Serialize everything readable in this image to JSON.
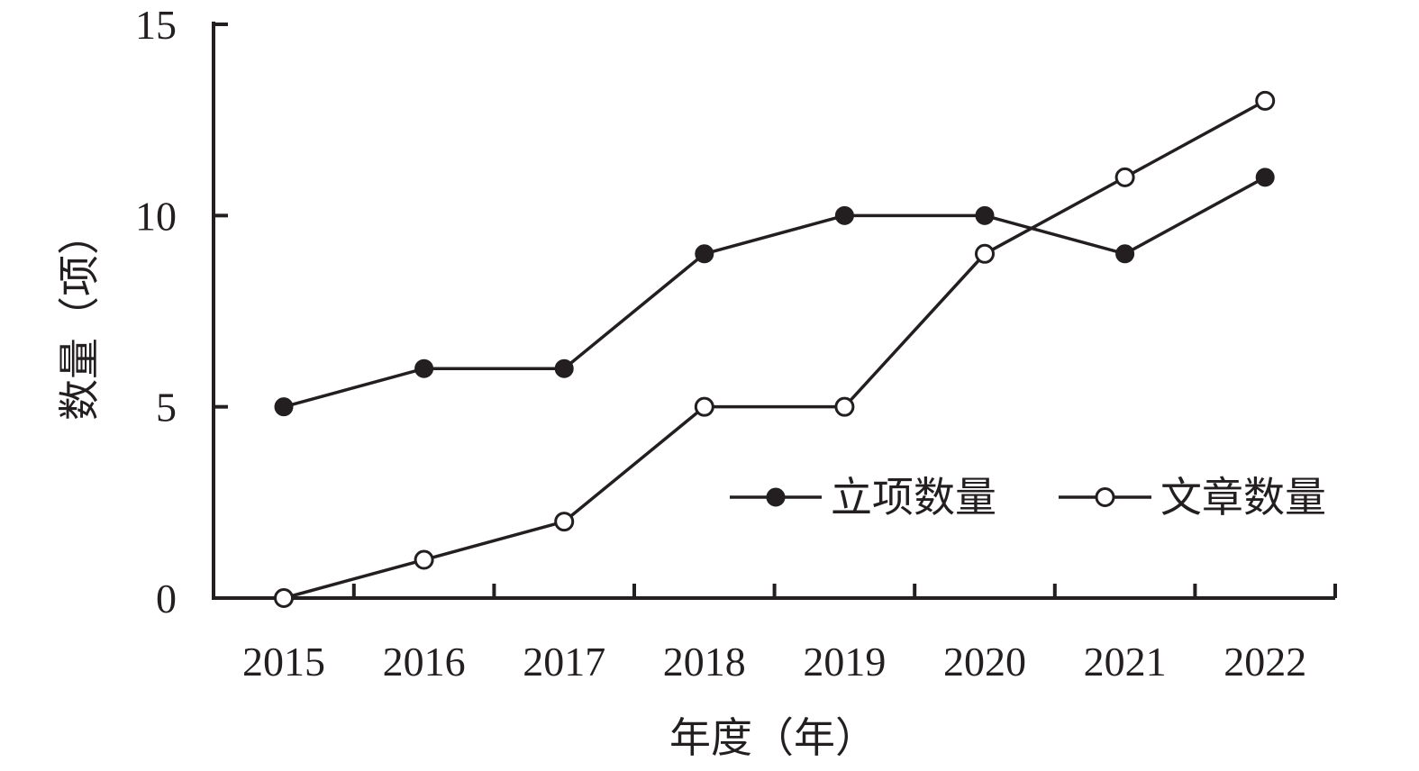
{
  "chart_data": {
    "type": "line",
    "categories": [
      "2015",
      "2016",
      "2017",
      "2018",
      "2019",
      "2020",
      "2021",
      "2022"
    ],
    "series": [
      {
        "name": "立项数量",
        "marker": "filled",
        "values": [
          5,
          6,
          6,
          9,
          10,
          10,
          9,
          11
        ]
      },
      {
        "name": "文章数量",
        "marker": "open",
        "values": [
          0,
          1,
          2,
          5,
          5,
          9,
          11,
          13
        ]
      }
    ],
    "xlabel": "年度（年）",
    "ylabel": "数量（项）",
    "ylim": [
      0,
      15
    ],
    "yticks": [
      "0",
      "5",
      "10",
      "15"
    ],
    "grid": false,
    "legend_position": "right",
    "colors": {
      "line": "#231f20",
      "open_fill": "#ffffff"
    }
  }
}
